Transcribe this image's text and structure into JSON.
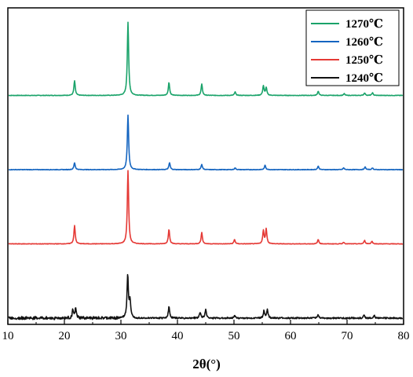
{
  "chart_data": {
    "type": "line",
    "xlabel": "2θ(°)",
    "ylabel": "",
    "title": "",
    "xlim": [
      10,
      80
    ],
    "xticks": [
      "10",
      "20",
      "30",
      "40",
      "50",
      "60",
      "70",
      "80"
    ],
    "grid": false,
    "legend_position": "top-right",
    "yticks_shown": false,
    "series": [
      {
        "name": "1270℃",
        "color": "#1aa36a",
        "baseline": 3,
        "peaks": [
          [
            21.8,
            0.17
          ],
          [
            31.25,
            0.85
          ],
          [
            38.5,
            0.15
          ],
          [
            44.3,
            0.13
          ],
          [
            50.2,
            0.04
          ],
          [
            55.2,
            0.11
          ],
          [
            55.7,
            0.09
          ],
          [
            64.9,
            0.05
          ],
          [
            69.5,
            0.02
          ],
          [
            73.1,
            0.03
          ],
          [
            74.5,
            0.03
          ]
        ]
      },
      {
        "name": "1260℃",
        "color": "#1565c0",
        "baseline": 2,
        "peaks": [
          [
            21.8,
            0.08
          ],
          [
            31.25,
            0.63
          ],
          [
            38.6,
            0.08
          ],
          [
            44.3,
            0.06
          ],
          [
            50.2,
            0.02
          ],
          [
            55.5,
            0.05
          ],
          [
            64.9,
            0.04
          ],
          [
            69.4,
            0.02
          ],
          [
            73.2,
            0.03
          ],
          [
            74.5,
            0.02
          ]
        ]
      },
      {
        "name": "1250℃",
        "color": "#e53935",
        "baseline": 1,
        "peaks": [
          [
            21.8,
            0.21
          ],
          [
            31.25,
            0.85
          ],
          [
            38.5,
            0.17
          ],
          [
            44.3,
            0.13
          ],
          [
            50.1,
            0.05
          ],
          [
            55.2,
            0.15
          ],
          [
            55.7,
            0.17
          ],
          [
            64.9,
            0.05
          ],
          [
            69.4,
            0.02
          ],
          [
            73.1,
            0.04
          ],
          [
            74.4,
            0.03
          ]
        ]
      },
      {
        "name": "1240℃",
        "color": "#111111",
        "baseline": 0,
        "noise": 0.02,
        "peaks": [
          [
            21.5,
            0.09
          ],
          [
            22.0,
            0.11
          ],
          [
            31.2,
            0.5
          ],
          [
            31.6,
            0.2
          ],
          [
            38.5,
            0.13
          ],
          [
            44.0,
            0.07
          ],
          [
            45.0,
            0.1
          ],
          [
            50.1,
            0.03
          ],
          [
            55.3,
            0.08
          ],
          [
            55.9,
            0.1
          ],
          [
            64.9,
            0.04
          ],
          [
            73.0,
            0.03
          ],
          [
            74.8,
            0.03
          ]
        ]
      }
    ]
  }
}
